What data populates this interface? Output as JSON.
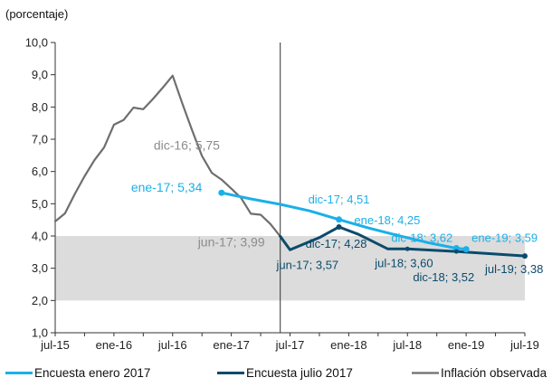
{
  "chart_data": {
    "type": "line",
    "ylabel": "(porcentaje)",
    "ylim": [
      1,
      10
    ],
    "y_ticks": [
      "1,0",
      "2,0",
      "3,0",
      "4,0",
      "5,0",
      "6,0",
      "7,0",
      "8,0",
      "9,0",
      "10,0"
    ],
    "x_ticks": [
      "jul-15",
      "ene-16",
      "jul-16",
      "ene-17",
      "jul-17",
      "ene-18",
      "jul-18",
      "ene-19",
      "jul-19"
    ],
    "target_band": [
      2,
      4
    ],
    "vertical_line_x": "2017-06",
    "series": [
      {
        "name": "Encuesta enero 2017",
        "color": "#1ab0e8",
        "points": [
          [
            "2016-12",
            5.34
          ],
          [
            "2017-03",
            5.15
          ],
          [
            "2017-06",
            4.98
          ],
          [
            "2017-09",
            4.78
          ],
          [
            "2017-12",
            4.51
          ],
          [
            "2018-03",
            4.25
          ],
          [
            "2018-06",
            4.02
          ],
          [
            "2018-09",
            3.8
          ],
          [
            "2018-12",
            3.62
          ],
          [
            "2019-01",
            3.59
          ]
        ]
      },
      {
        "name": "Encuesta julio 2017",
        "color": "#0b4b6b",
        "points": [
          [
            "2017-06",
            3.99
          ],
          [
            "2017-07",
            3.57
          ],
          [
            "2017-10",
            3.95
          ],
          [
            "2017-12",
            4.28
          ],
          [
            "2018-02",
            4.05
          ],
          [
            "2018-05",
            3.6
          ],
          [
            "2018-07",
            3.6
          ],
          [
            "2018-12",
            3.52
          ],
          [
            "2019-03",
            3.46
          ],
          [
            "2019-06",
            3.4
          ],
          [
            "2019-07",
            3.38
          ]
        ]
      },
      {
        "name": "Inflación observada",
        "color": "#6e6e6e",
        "points": [
          [
            "2015-07",
            4.45
          ],
          [
            "2015-08",
            4.7
          ],
          [
            "2015-09",
            5.3
          ],
          [
            "2015-10",
            5.85
          ],
          [
            "2015-11",
            6.35
          ],
          [
            "2015-12",
            6.75
          ],
          [
            "2016-01",
            7.45
          ],
          [
            "2016-02",
            7.6
          ],
          [
            "2016-03",
            7.98
          ],
          [
            "2016-04",
            7.93
          ],
          [
            "2016-05",
            8.25
          ],
          [
            "2016-06",
            8.6
          ],
          [
            "2016-07",
            8.97
          ],
          [
            "2016-08",
            8.1
          ],
          [
            "2016-09",
            7.27
          ],
          [
            "2016-10",
            6.48
          ],
          [
            "2016-11",
            5.96
          ],
          [
            "2016-12",
            5.75
          ],
          [
            "2017-01",
            5.47
          ],
          [
            "2017-02",
            5.18
          ],
          [
            "2017-03",
            4.69
          ],
          [
            "2017-04",
            4.66
          ],
          [
            "2017-05",
            4.37
          ],
          [
            "2017-06",
            3.99
          ]
        ]
      }
    ],
    "annotations": [
      {
        "text": "ene-17; 5,34",
        "x": "2016-12",
        "y": 5.34,
        "color": "#1ab0e8"
      },
      {
        "text": "dic-17; 4,51",
        "x": "2017-12",
        "y": 4.51,
        "color": "#1ab0e8"
      },
      {
        "text": "ene-18; 4,25",
        "x": "2018-01",
        "y": 4.25,
        "color": "#1ab0e8"
      },
      {
        "text": "dic-18; 3,62",
        "x": "2018-12",
        "y": 3.62,
        "color": "#1ab0e8"
      },
      {
        "text": "ene-19; 3,59",
        "x": "2019-01",
        "y": 3.59,
        "color": "#1ab0e8"
      },
      {
        "text": "dic-16; 5,75",
        "x": "2016-12",
        "y": 5.75,
        "color": "#8c8c8c"
      },
      {
        "text": "jun-17; 3,99",
        "x": "2017-06",
        "y": 3.99,
        "color": "#8c8c8c"
      },
      {
        "text": "jun-17; 3,57",
        "x": "2017-07",
        "y": 3.57,
        "color": "#0b4b6b"
      },
      {
        "text": "dic-17; 4,28",
        "x": "2017-12",
        "y": 4.28,
        "color": "#0b4b6b"
      },
      {
        "text": "jul-18; 3,60",
        "x": "2018-07",
        "y": 3.6,
        "color": "#0b4b6b"
      },
      {
        "text": "dic-18; 3,52",
        "x": "2018-12",
        "y": 3.52,
        "color": "#0b4b6b"
      },
      {
        "text": "jul-19; 3,38",
        "x": "2019-07",
        "y": 3.38,
        "color": "#0b4b6b"
      }
    ],
    "grid": false,
    "legend": "bottom"
  }
}
